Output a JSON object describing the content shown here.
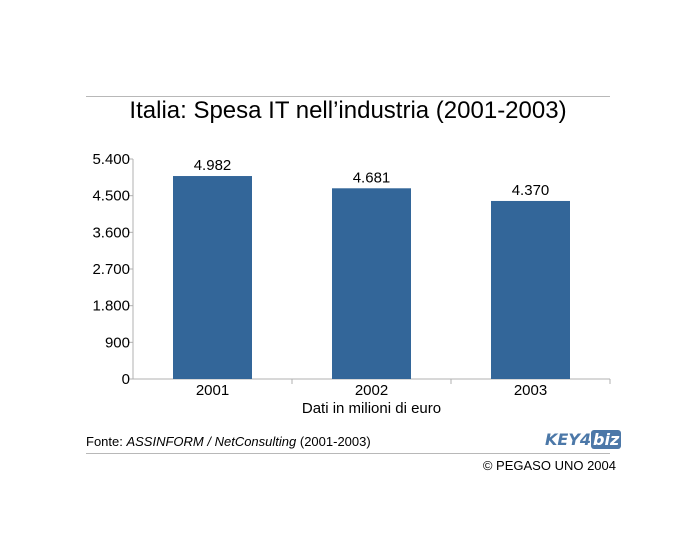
{
  "header": {
    "title": "Italia: Spesa IT nell’industria (2001-2003)"
  },
  "chart_data": {
    "type": "bar",
    "title": "Italia: Spesa IT nell’industria (2001-2003)",
    "categories": [
      "2001",
      "2002",
      "2003"
    ],
    "values": [
      4982,
      4681,
      4370
    ],
    "value_labels": [
      "4.982",
      "4.681",
      "4.370"
    ],
    "xlabel": "Dati in milioni di euro",
    "ylabel": "",
    "ylim": [
      0,
      5400
    ],
    "yticks": [
      0,
      900,
      1800,
      2700,
      3600,
      4500,
      5400
    ],
    "ytick_labels": [
      "0",
      "900",
      "1.800",
      "2.700",
      "3.600",
      "4.500",
      "5.400"
    ],
    "grid": false,
    "bar_color": "#336699"
  },
  "footer": {
    "source_prefix": "Fonte: ",
    "source_italic": "ASSINFORM / NetConsulting",
    "source_suffix": " (2001-2003)",
    "copyright": "© PEGASO UNO 2004",
    "logo_key": "KEY4",
    "logo_biz": "biz"
  }
}
